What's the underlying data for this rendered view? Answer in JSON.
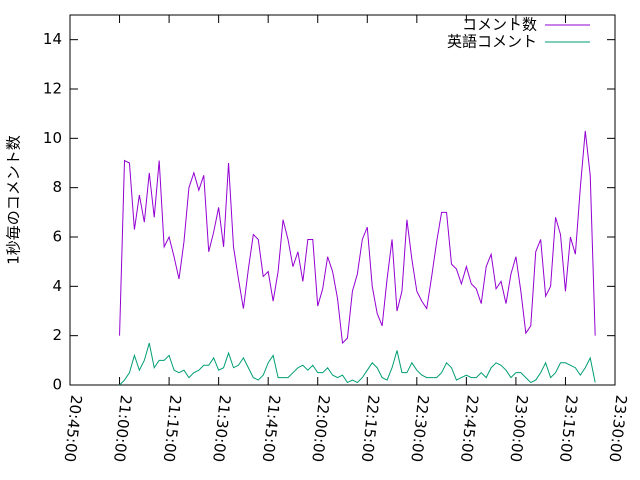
{
  "chart_data": {
    "type": "line",
    "ylabel": "1秒毎のコメント数",
    "x": [
      75600,
      75690,
      75780,
      75870,
      75960,
      76050,
      76140,
      76230,
      76320,
      76410,
      76500,
      76590,
      76680,
      76770,
      76860,
      76950,
      77040,
      77130,
      77220,
      77310,
      77400,
      77490,
      77580,
      77670,
      77760,
      77850,
      77940,
      78030,
      78120,
      78210,
      78300,
      78390,
      78480,
      78570,
      78660,
      78750,
      78840,
      78930,
      79020,
      79110,
      79200,
      79290,
      79380,
      79470,
      79560,
      79650,
      79740,
      79830,
      79920,
      80010,
      80100,
      80190,
      80280,
      80370,
      80460,
      80550,
      80640,
      80730,
      80820,
      80910,
      81000,
      81090,
      81180,
      81270,
      81360,
      81450,
      81540,
      81630,
      81720,
      81810,
      81900,
      81990,
      82080,
      82170,
      82260,
      82350,
      82440,
      82530,
      82620,
      82710,
      82800,
      82890,
      82980,
      83070,
      83160,
      83250,
      83340,
      83430,
      83520,
      83610,
      83700,
      83790,
      83880,
      83970,
      84060,
      84150,
      84240
    ],
    "series": [
      {
        "name": "コメント数",
        "color": "#9400d3",
        "values": [
          2.0,
          9.1,
          9.0,
          6.3,
          7.7,
          6.6,
          8.6,
          6.8,
          9.1,
          5.6,
          6.0,
          5.2,
          4.3,
          5.8,
          8.0,
          8.6,
          7.9,
          8.5,
          5.4,
          6.2,
          7.2,
          5.6,
          9.0,
          5.6,
          4.3,
          3.1,
          4.7,
          6.1,
          5.9,
          4.4,
          4.6,
          3.4,
          4.6,
          6.7,
          5.9,
          4.8,
          5.4,
          4.2,
          5.9,
          5.9,
          3.2,
          3.9,
          5.2,
          4.6,
          3.5,
          1.7,
          1.9,
          3.8,
          4.5,
          5.9,
          6.4,
          4.0,
          2.9,
          2.4,
          4.3,
          5.9,
          3.0,
          3.8,
          6.7,
          5.1,
          3.8,
          3.4,
          3.1,
          4.4,
          5.8,
          7.0,
          7.0,
          4.9,
          4.7,
          4.1,
          4.8,
          4.1,
          3.9,
          3.3,
          4.8,
          5.3,
          3.9,
          4.2,
          3.3,
          4.5,
          5.2,
          3.8,
          2.1,
          2.4,
          5.4,
          5.9,
          3.6,
          4.0,
          6.8,
          6.1,
          3.8,
          6.0,
          5.3,
          8.0,
          10.3,
          8.5,
          2.0
        ]
      },
      {
        "name": "英語コメント",
        "color": "#009e73",
        "values": [
          0,
          0.2,
          0.5,
          1.2,
          0.6,
          1.0,
          1.7,
          0.7,
          1.0,
          1.0,
          1.2,
          0.6,
          0.5,
          0.6,
          0.3,
          0.5,
          0.6,
          0.8,
          0.8,
          1.1,
          0.6,
          0.7,
          1.3,
          0.7,
          0.8,
          1.1,
          0.7,
          0.3,
          0.2,
          0.4,
          0.9,
          1.2,
          0.3,
          0.3,
          0.3,
          0.5,
          0.7,
          0.8,
          0.6,
          0.8,
          0.5,
          0.5,
          0.7,
          0.4,
          0.3,
          0.4,
          0.1,
          0.2,
          0.1,
          0.3,
          0.6,
          0.9,
          0.7,
          0.3,
          0.2,
          0.7,
          1.4,
          0.5,
          0.5,
          0.9,
          0.6,
          0.4,
          0.3,
          0.3,
          0.3,
          0.5,
          0.9,
          0.7,
          0.2,
          0.3,
          0.4,
          0.3,
          0.3,
          0.5,
          0.3,
          0.7,
          0.9,
          0.8,
          0.6,
          0.3,
          0.5,
          0.5,
          0.3,
          0.1,
          0.2,
          0.5,
          0.9,
          0.3,
          0.5,
          0.9,
          0.9,
          0.8,
          0.7,
          0.4,
          0.7,
          1.1,
          0.1
        ]
      }
    ],
    "xlim": [
      74700,
      84600
    ],
    "xticks": [
      {
        "value": 74700,
        "label": "20:45:00"
      },
      {
        "value": 75600,
        "label": "21:00:00"
      },
      {
        "value": 76500,
        "label": "21:15:00"
      },
      {
        "value": 77400,
        "label": "21:30:00"
      },
      {
        "value": 78300,
        "label": "21:45:00"
      },
      {
        "value": 79200,
        "label": "22:00:00"
      },
      {
        "value": 80100,
        "label": "22:15:00"
      },
      {
        "value": 81000,
        "label": "22:30:00"
      },
      {
        "value": 81900,
        "label": "22:45:00"
      },
      {
        "value": 82800,
        "label": "23:00:00"
      },
      {
        "value": 83700,
        "label": "23:15:00"
      },
      {
        "value": 84600,
        "label": "23:30:00"
      }
    ],
    "ylim": [
      0,
      15
    ],
    "yticks": [
      0,
      2,
      4,
      6,
      8,
      10,
      12,
      14
    ],
    "legend": "top-right"
  }
}
